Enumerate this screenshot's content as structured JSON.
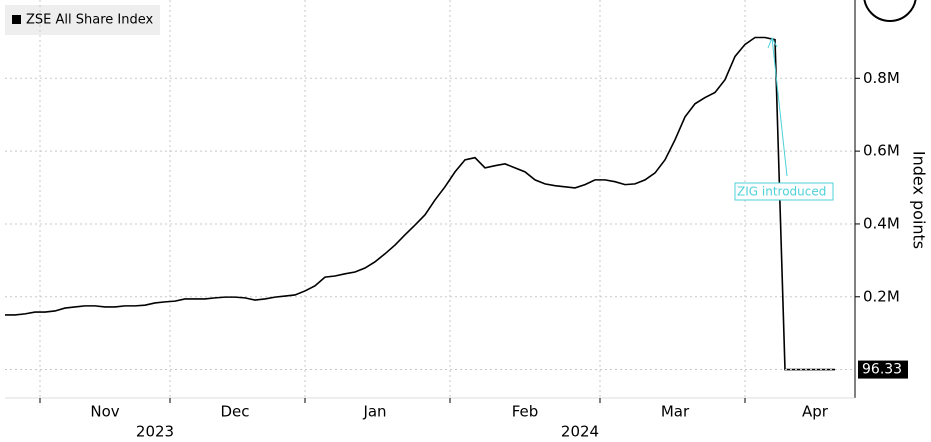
{
  "chart_data": {
    "type": "line",
    "legend": "ZSE All Share Index",
    "y_label": "Index points",
    "annotation": "ZIG introduced",
    "categories": [
      null,
      null,
      null,
      null,
      null,
      null,
      null,
      null,
      null,
      null,
      "Nov",
      null,
      null,
      null,
      null,
      null,
      null,
      null,
      null,
      null,
      null,
      null,
      null,
      "Dec",
      null,
      null,
      null,
      null,
      null,
      null,
      null,
      null,
      null,
      null,
      null,
      null,
      null,
      "Jan",
      null,
      null,
      null,
      null,
      null,
      null,
      null,
      null,
      null,
      null,
      null,
      null,
      null,
      null,
      "Feb",
      null,
      null,
      null,
      null,
      null,
      null,
      null,
      null,
      null,
      null,
      null,
      null,
      null,
      null,
      "Mar",
      null,
      null,
      null,
      null,
      null,
      null,
      null,
      null,
      null,
      null,
      null,
      null,
      null,
      "Apr",
      null,
      null
    ],
    "year_labels": [
      "2023",
      "2024"
    ],
    "series": [
      {
        "name": "ZSE All Share Index",
        "color": "#000000",
        "values": [
          150000,
          150000,
          153000,
          158000,
          158000,
          161000,
          169000,
          172000,
          175000,
          175000,
          172000,
          172000,
          175000,
          175000,
          177000,
          183000,
          186000,
          188000,
          194000,
          194000,
          194000,
          197000,
          199000,
          199000,
          197000,
          191000,
          194000,
          199000,
          202000,
          205000,
          216000,
          230000,
          254000,
          257000,
          263000,
          268000,
          279000,
          296000,
          318000,
          342000,
          370000,
          397000,
          425000,
          466000,
          502000,
          543000,
          576000,
          582000,
          554000,
          560000,
          565000,
          554000,
          543000,
          521000,
          510000,
          505000,
          502000,
          499000,
          508000,
          521000,
          521000,
          516000,
          508000,
          510000,
          521000,
          540000,
          576000,
          631000,
          694000,
          730000,
          747000,
          761000,
          796000,
          860000,
          893000,
          912000,
          912000,
          906000,
          96.33,
          96.33,
          96.33,
          96.33,
          96.33,
          96.33
        ]
      }
    ],
    "ylim": [
      -78000,
      1015000
    ],
    "yticks": [
      {
        "value": 200000,
        "label": "0.2M"
      },
      {
        "value": 400000,
        "label": "0.4M"
      },
      {
        "value": 600000,
        "label": "0.6M"
      },
      {
        "value": 800000,
        "label": "0.8M"
      }
    ],
    "grid": true
  }
}
